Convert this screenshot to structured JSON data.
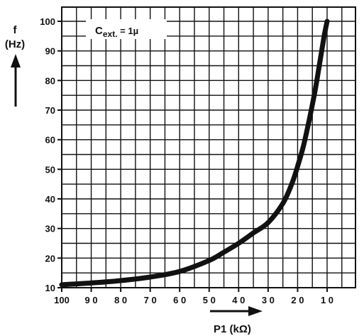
{
  "chart_data": {
    "type": "line",
    "title": "",
    "xlabel": "P1 (kΩ)",
    "ylabel_symbol": "f",
    "ylabel_unit": "(Hz)",
    "annotation": {
      "main": "C",
      "subscript": "ext.",
      "suffix": " = 1µ"
    },
    "x_axis": {
      "reversed": true,
      "range": [
        100,
        10
      ],
      "ticks": [
        100,
        90,
        80,
        70,
        60,
        50,
        40,
        30,
        20,
        10
      ],
      "tick_labels": [
        "100",
        "9 0",
        "8 0",
        "7 0",
        "6 0",
        "5 0",
        "4 0",
        "3 0",
        "2 0",
        "1 0"
      ]
    },
    "y_axis": {
      "range": [
        10,
        100
      ],
      "ticks": [
        10,
        20,
        30,
        40,
        50,
        60,
        70,
        80,
        90,
        100
      ],
      "tick_labels": [
        "10",
        "20",
        "30",
        "40",
        "50",
        "60",
        "70",
        "80",
        "90",
        "100"
      ]
    },
    "grid": true,
    "series": [
      {
        "x": [
          100,
          90,
          80,
          70,
          60,
          50,
          45,
          40,
          35,
          30,
          25,
          22,
          20,
          18,
          16,
          14,
          12,
          11,
          10
        ],
        "y": [
          11,
          11.6,
          12.4,
          13.6,
          15.5,
          19.2,
          22,
          25,
          28.5,
          32,
          38.5,
          45,
          51,
          58,
          67,
          77,
          89,
          95,
          100
        ]
      }
    ],
    "colors": {
      "line": "#111111",
      "grid": "#111111",
      "background": "#ffffff"
    }
  }
}
